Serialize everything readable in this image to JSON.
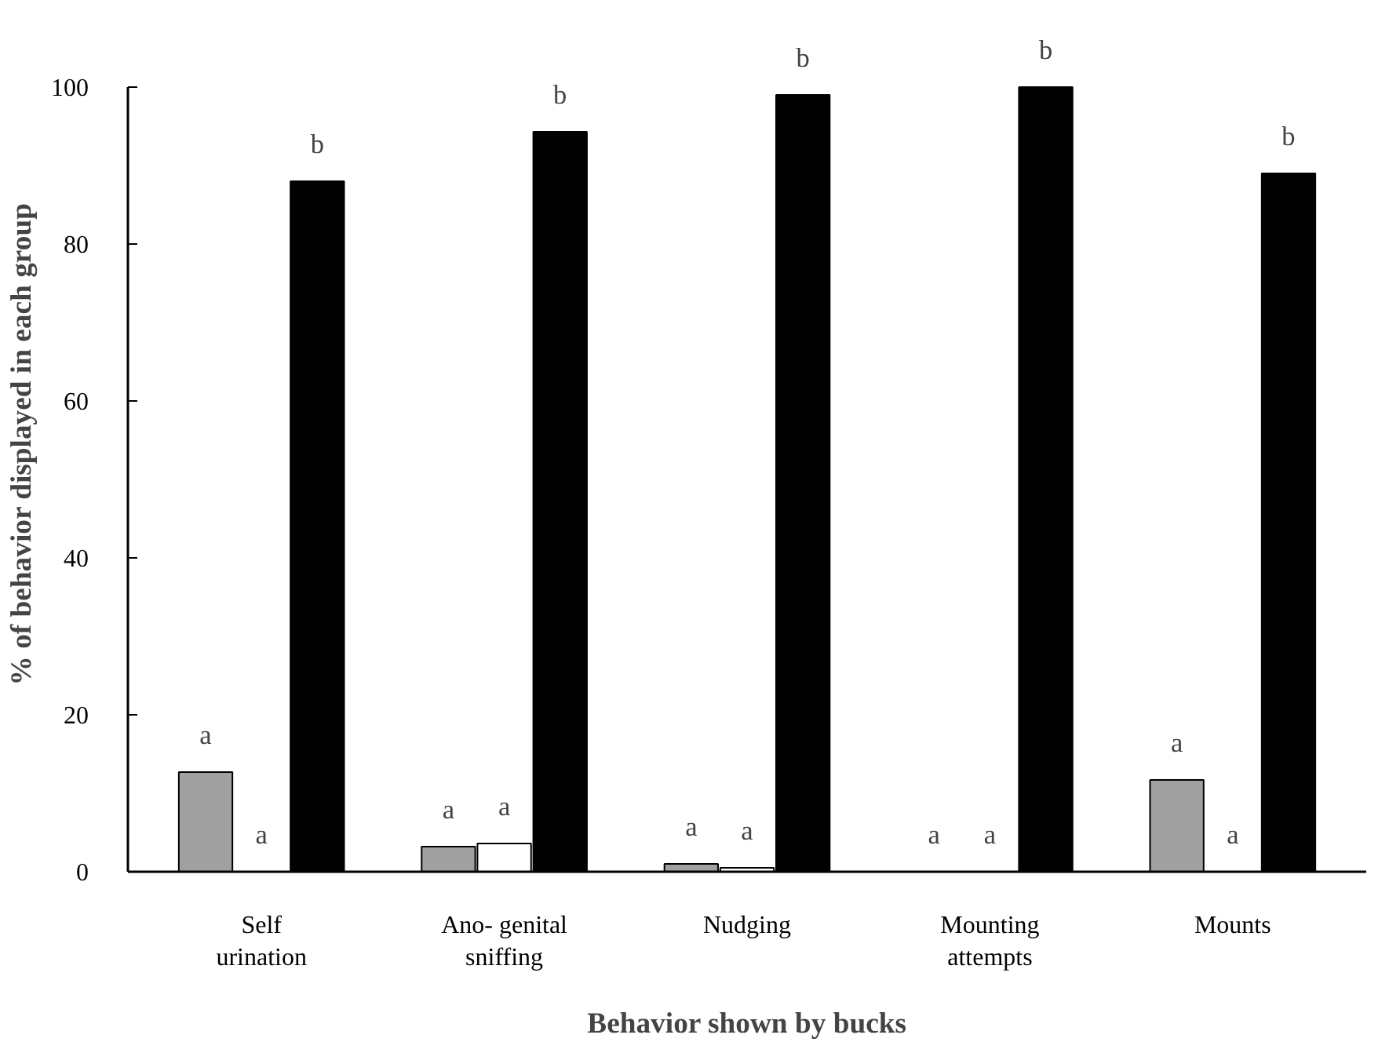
{
  "chart_data": {
    "type": "bar",
    "xlabel": "Behavior shown by bucks",
    "ylabel": "% of behavior displayed in each group",
    "categories": [
      "Self\nurination",
      "Ano- genital\nsniffing",
      "Nudging",
      "Mounting\nattempts",
      "Mounts"
    ],
    "series": [
      {
        "color": "#a0a0a0",
        "values": [
          12.7,
          3.2,
          1,
          0,
          11.7
        ]
      },
      {
        "color": "#ffffff",
        "values": [
          0,
          3.6,
          0.5,
          0,
          0
        ]
      },
      {
        "color": "#000000",
        "values": [
          88,
          94.3,
          99,
          100,
          89
        ]
      }
    ],
    "ylim": [
      0,
      100
    ],
    "yticks": [
      0,
      20,
      40,
      60,
      80,
      100
    ],
    "grid": false,
    "annotations": [
      "a",
      "a",
      "b",
      "a",
      "a",
      "b",
      "a",
      "a",
      "b",
      "a",
      "a",
      "b",
      "a",
      "a",
      "b"
    ]
  }
}
